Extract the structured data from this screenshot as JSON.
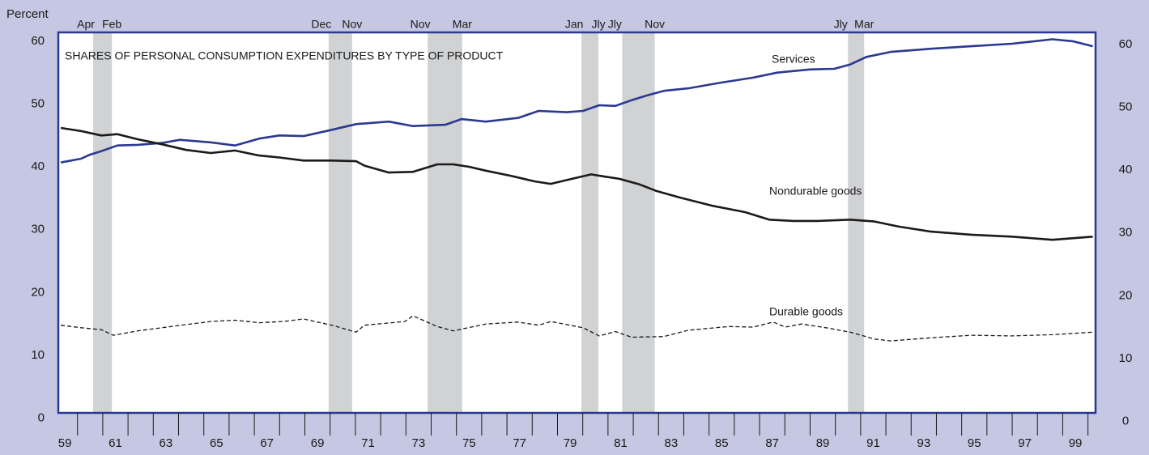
{
  "chart_data": {
    "type": "line",
    "title": "SHARES OF PERSONAL CONSUMPTION EXPENDITURES BY TYPE OF PRODUCT",
    "y_label": "Percent",
    "xlim": [
      1959.24,
      2000.3
    ],
    "ylim": [
      0.85,
      61.4
    ],
    "yticks": [
      0,
      10,
      20,
      30,
      40,
      50,
      60
    ],
    "y2lim": [
      0.85,
      61.4
    ],
    "y2ticks": [
      0,
      10,
      20,
      30,
      40,
      50,
      60
    ],
    "xticks": [
      {
        "value": 1959.5,
        "label": "59"
      },
      {
        "value": 1961.5,
        "label": "61"
      },
      {
        "value": 1963.5,
        "label": "63"
      },
      {
        "value": 1965.5,
        "label": "65"
      },
      {
        "value": 1967.5,
        "label": "67"
      },
      {
        "value": 1969.5,
        "label": "69"
      },
      {
        "value": 1971.5,
        "label": "71"
      },
      {
        "value": 1973.5,
        "label": "73"
      },
      {
        "value": 1975.5,
        "label": "75"
      },
      {
        "value": 1977.5,
        "label": "77"
      },
      {
        "value": 1979.5,
        "label": "79"
      },
      {
        "value": 1981.5,
        "label": "81"
      },
      {
        "value": 1983.5,
        "label": "83"
      },
      {
        "value": 1985.5,
        "label": "85"
      },
      {
        "value": 1987.5,
        "label": "87"
      },
      {
        "value": 1989.5,
        "label": "89"
      },
      {
        "value": 1991.5,
        "label": "91"
      },
      {
        "value": 1993.5,
        "label": "93"
      },
      {
        "value": 1995.5,
        "label": "95"
      },
      {
        "value": 1997.5,
        "label": "97"
      },
      {
        "value": 1999.5,
        "label": "99"
      }
    ],
    "xminorticks": [
      1960,
      1961,
      1962,
      1963,
      1964,
      1965,
      1966,
      1967,
      1968,
      1969,
      1970,
      1971,
      1972,
      1973,
      1974,
      1975,
      1976,
      1977,
      1978,
      1979,
      1980,
      1981,
      1982,
      1983,
      1984,
      1985,
      1986,
      1987,
      1988,
      1989,
      1990,
      1991,
      1992,
      1993,
      1994,
      1995,
      1996,
      1997,
      1998,
      1999,
      2000
    ],
    "shading": [
      {
        "start": 1960.62,
        "end": 1961.36,
        "start_label": "Apr",
        "end_label": "Feb"
      },
      {
        "start": 1969.94,
        "end": 1970.87,
        "start_label": "Dec",
        "end_label": "Nov"
      },
      {
        "start": 1973.86,
        "end": 1975.23,
        "start_label": "Nov",
        "end_label": "Mar"
      },
      {
        "start": 1979.95,
        "end": 1980.62,
        "start_label": "Jan",
        "end_label": "Jly"
      },
      {
        "start": 1981.56,
        "end": 1982.85,
        "start_label": "Jly",
        "end_label": "Nov"
      },
      {
        "start": 1990.5,
        "end": 1991.14,
        "start_label": "Jly",
        "end_label": "Mar"
      }
    ],
    "series": [
      {
        "name": "Services",
        "color": "#2b3990",
        "dashed": false,
        "x": [
          1959.34,
          1960.14,
          1960.46,
          1960.94,
          1961.58,
          1962.38,
          1963.34,
          1964.05,
          1965.27,
          1966.23,
          1967.19,
          1967.99,
          1968.95,
          1970.07,
          1971.03,
          1972.32,
          1973.28,
          1974.56,
          1975.2,
          1976.16,
          1977.45,
          1978.25,
          1979.37,
          1980.01,
          1980.65,
          1981.29,
          1981.93,
          1982.57,
          1983.21,
          1984.18,
          1985.46,
          1986.74,
          1987.7,
          1988.98,
          1989.95,
          1990.59,
          1991.23,
          1992.19,
          1993.79,
          1995.39,
          1996.99,
          1998.59,
          1999.39,
          2000.19
        ],
        "values": [
          40.7,
          41.3,
          41.9,
          42.5,
          43.4,
          43.5,
          43.8,
          44.3,
          43.9,
          43.4,
          44.5,
          45.0,
          44.9,
          45.9,
          46.8,
          47.2,
          46.5,
          46.7,
          47.6,
          47.2,
          47.8,
          48.9,
          48.7,
          48.9,
          49.8,
          49.7,
          50.6,
          51.4,
          52.1,
          52.5,
          53.4,
          54.2,
          55.0,
          55.5,
          55.6,
          56.3,
          57.5,
          58.3,
          58.8,
          59.2,
          59.6,
          60.3,
          60.0,
          59.2
        ]
      },
      {
        "name": "Nondurable goods",
        "color": "#1a1a1a",
        "dashed": false,
        "x": [
          1959.34,
          1960.14,
          1960.94,
          1961.58,
          1962.38,
          1963.34,
          1964.3,
          1965.27,
          1966.23,
          1967.19,
          1967.99,
          1968.95,
          1970.07,
          1971.03,
          1971.36,
          1972.32,
          1973.28,
          1974.24,
          1974.88,
          1975.52,
          1976.16,
          1977.13,
          1978.09,
          1978.73,
          1979.37,
          1980.33,
          1980.81,
          1981.45,
          1982.25,
          1982.89,
          1983.86,
          1985.14,
          1986.42,
          1987.38,
          1988.34,
          1989.3,
          1990.59,
          1991.55,
          1992.51,
          1993.79,
          1995.39,
          1996.99,
          1998.59,
          2000.19
        ],
        "values": [
          46.2,
          45.7,
          45.0,
          45.2,
          44.4,
          43.6,
          42.7,
          42.2,
          42.6,
          41.8,
          41.5,
          41.0,
          41.0,
          40.9,
          40.2,
          39.1,
          39.2,
          40.4,
          40.4,
          40.0,
          39.4,
          38.6,
          37.7,
          37.3,
          37.9,
          38.8,
          38.5,
          38.1,
          37.2,
          36.2,
          35.1,
          33.8,
          32.8,
          31.6,
          31.4,
          31.4,
          31.6,
          31.3,
          30.5,
          29.7,
          29.2,
          28.9,
          28.4,
          28.9
        ]
      },
      {
        "name": "Durable goods",
        "color": "#1a1a1a",
        "dashed": true,
        "x": [
          1959.34,
          1960.14,
          1960.94,
          1961.42,
          1962.38,
          1963.34,
          1964.3,
          1965.27,
          1966.23,
          1967.19,
          1968.15,
          1968.95,
          1970.07,
          1971.03,
          1971.36,
          1972.96,
          1973.28,
          1974.24,
          1974.88,
          1976.16,
          1977.45,
          1978.25,
          1978.73,
          1980.01,
          1980.65,
          1981.29,
          1981.93,
          1983.21,
          1984.18,
          1985.78,
          1986.74,
          1987.54,
          1988.02,
          1988.66,
          1989.63,
          1990.59,
          1991.55,
          1992.19,
          1993.79,
          1995.39,
          1996.99,
          1998.59,
          2000.19
        ],
        "values": [
          14.8,
          14.4,
          14.1,
          13.2,
          13.9,
          14.4,
          14.9,
          15.4,
          15.6,
          15.2,
          15.4,
          15.8,
          14.8,
          13.7,
          14.8,
          15.4,
          16.3,
          14.6,
          13.9,
          15.0,
          15.3,
          14.8,
          15.4,
          14.4,
          13.1,
          13.8,
          12.9,
          13.0,
          14.0,
          14.6,
          14.5,
          15.3,
          14.5,
          15.0,
          14.4,
          13.7,
          12.6,
          12.3,
          12.8,
          13.2,
          13.1,
          13.3,
          13.7
        ]
      }
    ]
  }
}
